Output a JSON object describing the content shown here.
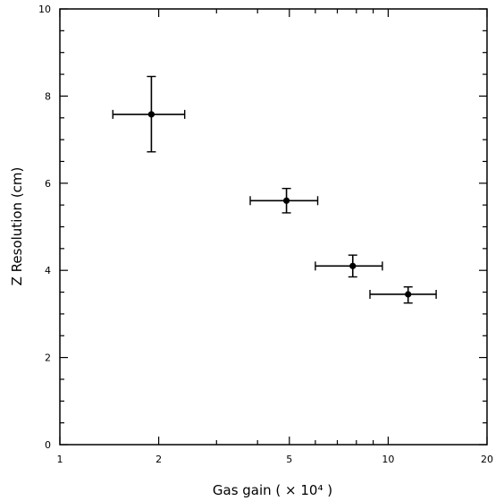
{
  "chart_data": {
    "type": "scatter",
    "title": "",
    "xlabel": "Gas gain ( × 10⁴ )",
    "ylabel": "Z Resolution (cm)",
    "xscale": "log",
    "xlim": [
      1,
      20
    ],
    "ylim": [
      0,
      10
    ],
    "x_ticks": [
      1,
      2,
      5,
      10,
      20
    ],
    "y_ticks": [
      0,
      2,
      4,
      6,
      8,
      10
    ],
    "grid": false,
    "legend": "none",
    "points": [
      {
        "x": 1.9,
        "y": 7.58,
        "x_err": [
          1.45,
          2.4
        ],
        "y_err": [
          6.72,
          8.45
        ]
      },
      {
        "x": 4.9,
        "y": 5.6,
        "x_err": [
          3.8,
          6.1
        ],
        "y_err": [
          5.32,
          5.88
        ]
      },
      {
        "x": 7.8,
        "y": 4.1,
        "x_err": [
          6.0,
          9.6
        ],
        "y_err": [
          3.85,
          4.35
        ]
      },
      {
        "x": 11.5,
        "y": 3.45,
        "x_err": [
          8.8,
          14.0
        ],
        "y_err": [
          3.25,
          3.62
        ]
      }
    ]
  }
}
